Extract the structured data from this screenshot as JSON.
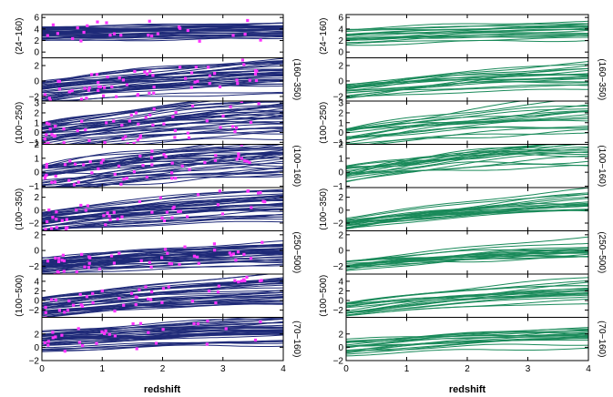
{
  "chart_data": {
    "type": "line",
    "description": "Two columns of 8 stacked panels of curves vs redshift",
    "x": {
      "label": "redshift",
      "range": [
        0,
        4
      ],
      "ticks": [
        0,
        1,
        2,
        3,
        4
      ]
    },
    "colors": {
      "left_curves": "#1f2a78",
      "right_curves": "#1a8a5a",
      "points": "#ff33ff"
    },
    "left_panels": [
      {
        "label": "(24−160)",
        "label_side": "left",
        "ylim": [
          -1,
          6.5
        ],
        "ticks": [
          0,
          2,
          4,
          6
        ],
        "n_curves": 34,
        "base": 3.2,
        "slope": 0.2,
        "spread": 1.6,
        "points": 25
      },
      {
        "label": "(160−350)",
        "label_side": "right",
        "ylim": [
          -2.6,
          3
        ],
        "ticks": [
          -2,
          0,
          2
        ],
        "n_curves": 34,
        "base": -1.4,
        "slope": 0.85,
        "spread": 1.4,
        "points": 60
      },
      {
        "label": "(100−250)",
        "label_side": "left",
        "ylim": [
          -1.2,
          3.2
        ],
        "ticks": [
          -1,
          0,
          1,
          2,
          3
        ],
        "n_curves": 34,
        "base": -0.6,
        "slope": 0.85,
        "spread": 1.5,
        "points": 60
      },
      {
        "label": "(100−160)",
        "label_side": "right",
        "ylim": [
          -1.1,
          2
        ],
        "ticks": [
          -1,
          0,
          1,
          2
        ],
        "n_curves": 34,
        "base": -0.5,
        "slope": 0.55,
        "spread": 1.0,
        "points": 55
      },
      {
        "label": "(100−350)",
        "label_side": "left",
        "ylim": [
          -3.2,
          3.5
        ],
        "ticks": [
          -2,
          0,
          2
        ],
        "n_curves": 34,
        "base": -1.8,
        "slope": 1.1,
        "spread": 1.6,
        "points": 50
      },
      {
        "label": "(250−500)",
        "label_side": "right",
        "ylim": [
          -3,
          2.5
        ],
        "ticks": [
          -2,
          0,
          2
        ],
        "n_curves": 34,
        "base": -2.0,
        "slope": 0.65,
        "spread": 1.0,
        "points": 45
      },
      {
        "label": "(100−500)",
        "label_side": "left",
        "ylim": [
          -3.5,
          5.5
        ],
        "ticks": [
          -2,
          0,
          2,
          4
        ],
        "n_curves": 34,
        "base": -1.5,
        "slope": 1.3,
        "spread": 2.2,
        "points": 45
      },
      {
        "label": "(70−160)",
        "label_side": "right",
        "ylim": [
          -2,
          4.5
        ],
        "ticks": [
          -2,
          0,
          2
        ],
        "n_curves": 34,
        "base": 0.8,
        "slope": 0.6,
        "spread": 1.6,
        "points": 30
      }
    ],
    "right_panels": [
      {
        "label": "(24−160)",
        "label_side": "left",
        "ylim": [
          -1,
          6.5
        ],
        "ticks": [
          0,
          2,
          4,
          6
        ],
        "n_curves": 18,
        "base": 2.6,
        "slope": 0.45,
        "spread": 1.4
      },
      {
        "label": "(160−350)",
        "label_side": "right",
        "ylim": [
          -2.6,
          3
        ],
        "ticks": [
          -2,
          0,
          2
        ],
        "n_curves": 18,
        "base": -1.4,
        "slope": 0.85,
        "spread": 0.9
      },
      {
        "label": "(100−250)",
        "label_side": "left",
        "ylim": [
          -1.2,
          3.2
        ],
        "ticks": [
          -1,
          0,
          1,
          2,
          3
        ],
        "n_curves": 18,
        "base": -0.6,
        "slope": 0.85,
        "spread": 1.1
      },
      {
        "label": "(100−160)",
        "label_side": "right",
        "ylim": [
          -1.1,
          2
        ],
        "ticks": [
          -1,
          0,
          1,
          2
        ],
        "n_curves": 18,
        "base": -0.3,
        "slope": 0.6,
        "spread": 0.7
      },
      {
        "label": "(100−350)",
        "label_side": "left",
        "ylim": [
          -3.2,
          3.5
        ],
        "ticks": [
          -2,
          0,
          2
        ],
        "n_curves": 18,
        "base": -2.0,
        "slope": 1.2,
        "spread": 1.0
      },
      {
        "label": "(250−500)",
        "label_side": "right",
        "ylim": [
          -3,
          2.5
        ],
        "ticks": [
          -2,
          0,
          2
        ],
        "n_curves": 18,
        "base": -2.0,
        "slope": 0.7,
        "spread": 0.7
      },
      {
        "label": "(100−500)",
        "label_side": "left",
        "ylim": [
          -3.5,
          5.5
        ],
        "ticks": [
          -2,
          0,
          2,
          4
        ],
        "n_curves": 18,
        "base": -1.8,
        "slope": 1.4,
        "spread": 1.4
      },
      {
        "label": "(70−160)",
        "label_side": "right",
        "ylim": [
          -2,
          4.5
        ],
        "ticks": [
          -2,
          0,
          2
        ],
        "n_curves": 18,
        "base": 0.0,
        "slope": 0.7,
        "spread": 1.2
      }
    ]
  }
}
